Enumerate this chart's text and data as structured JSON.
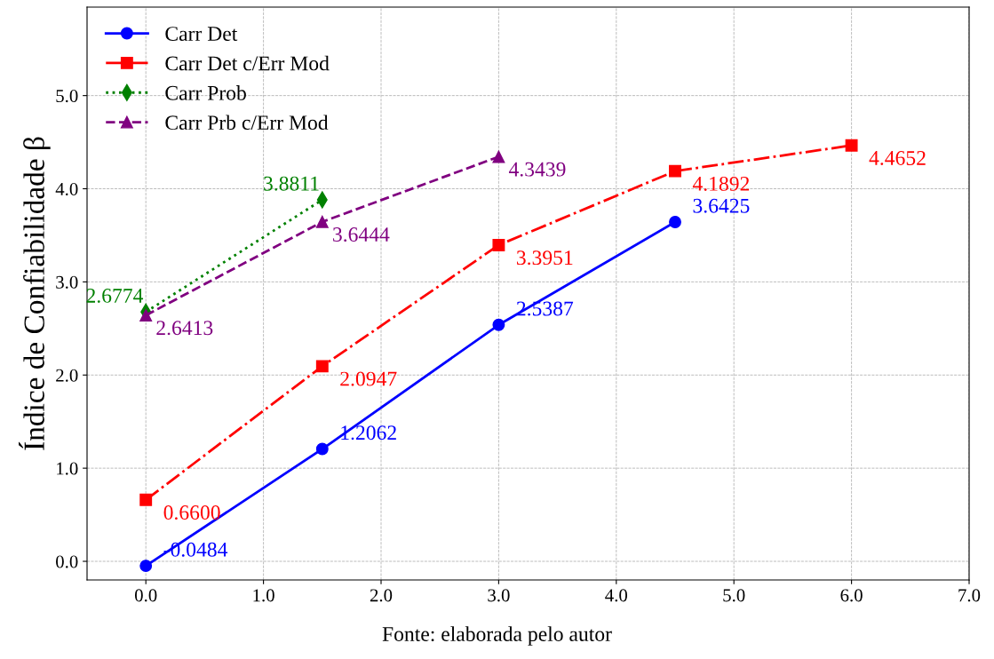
{
  "chart_data": {
    "type": "line",
    "ylabel": "Índice de Confiabilidade β",
    "annotations": [
      "Fonte: elaborada pelo autor"
    ],
    "xlim": [
      -0.5,
      7.0
    ],
    "ylim": [
      -0.2,
      5.95
    ],
    "xticks": [
      {
        "value": 0,
        "label": "0.0"
      },
      {
        "value": 1,
        "label": "1.0"
      },
      {
        "value": 2,
        "label": "2.0"
      },
      {
        "value": 3,
        "label": "3.0"
      },
      {
        "value": 4,
        "label": "4.0"
      },
      {
        "value": 5,
        "label": "5.0"
      },
      {
        "value": 6,
        "label": "6.0"
      },
      {
        "value": 7,
        "label": "7.0"
      }
    ],
    "yticks": [
      {
        "value": 0,
        "label": "0.0"
      },
      {
        "value": 1,
        "label": "1.0"
      },
      {
        "value": 2,
        "label": "2.0"
      },
      {
        "value": 3,
        "label": "3.0"
      },
      {
        "value": 4,
        "label": "4.0"
      },
      {
        "value": 5,
        "label": "5.0"
      }
    ],
    "grid": true,
    "legend": "top left",
    "series": [
      {
        "name": "Carr Det",
        "color": "#0000ff",
        "marker": "circle",
        "line_style": "solid",
        "x": [
          0,
          1.5,
          3,
          4.5
        ],
        "values": [
          -0.0484,
          1.2062,
          2.5387,
          3.6425
        ],
        "value_labels": [
          "-0.0484",
          "1.2062",
          "2.5387",
          "3.6425"
        ]
      },
      {
        "name": "Carr Det c/Err Mod",
        "color": "#ff0000",
        "marker": "square",
        "line_style": "dashdot",
        "x": [
          0,
          1.5,
          3,
          4.5,
          6
        ],
        "values": [
          0.66,
          2.0947,
          3.3951,
          4.1892,
          4.4652
        ],
        "value_labels": [
          "0.6600",
          "2.0947",
          "3.3951",
          "4.1892",
          "4.4652"
        ]
      },
      {
        "name": "Carr Prob",
        "color": "#008000",
        "marker": "diamond",
        "line_style": "dotted",
        "x": [
          0,
          1.5
        ],
        "values": [
          2.6774,
          3.8811
        ],
        "value_labels": [
          "2.6774",
          "3.8811"
        ]
      },
      {
        "name": "Carr Prb c/Err Mod",
        "color": "#800080",
        "marker": "triangle",
        "line_style": "dashed",
        "x": [
          0,
          1.5,
          3
        ],
        "values": [
          2.6413,
          3.6444,
          4.3439
        ],
        "value_labels": [
          "2.6413",
          "3.6444",
          "4.3439"
        ]
      }
    ]
  }
}
